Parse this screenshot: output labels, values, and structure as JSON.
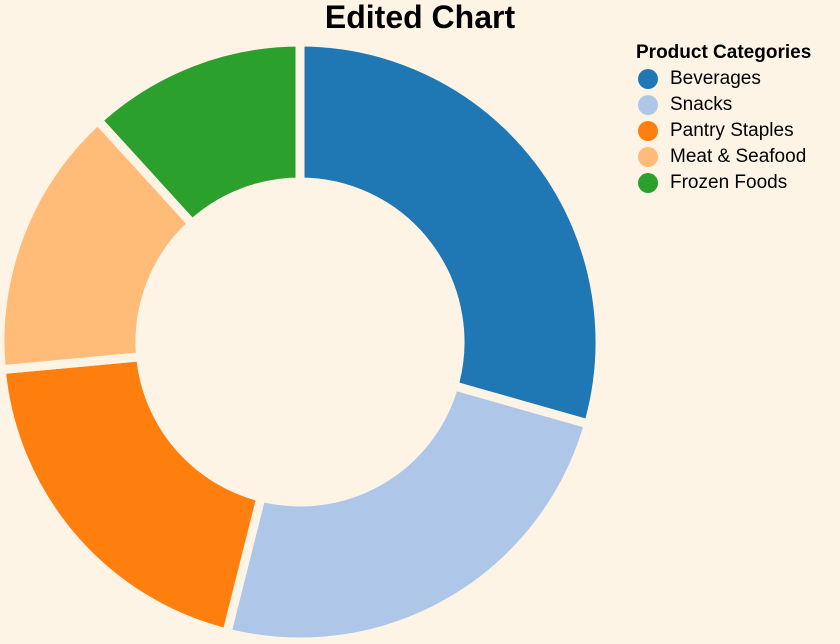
{
  "chart_data": {
    "type": "pie",
    "style": "donut",
    "title": "Edited Chart",
    "legend_title": "Product Categories",
    "legend_position": "top-right",
    "categories": [
      "Beverages",
      "Snacks",
      "Pantry Staples",
      "Meat & Seafood",
      "Frozen Foods"
    ],
    "values": [
      30,
      25,
      20,
      15,
      12
    ],
    "colors": [
      "#1f77b4",
      "#aec7e8",
      "#ff7f0e",
      "#ffbb78",
      "#2ca02c"
    ]
  }
}
